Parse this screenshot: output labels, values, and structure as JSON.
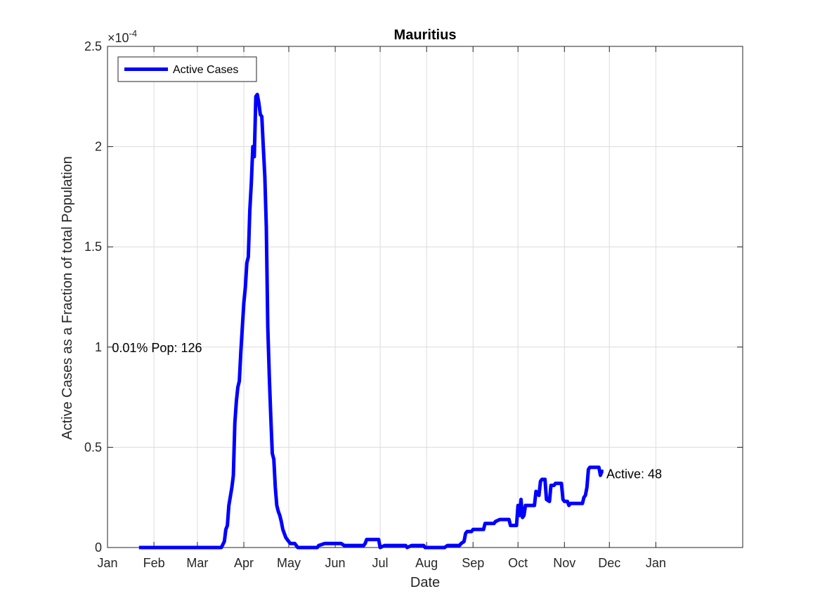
{
  "chart_data": {
    "type": "line",
    "title": "Mauritius",
    "xlabel": "Date",
    "ylabel": "Active Cases as a Fraction of total Population",
    "y_exponent_label": "×10",
    "y_exponent_power": "-4",
    "ylim": [
      0,
      0.00025
    ],
    "y_ticks": [
      0,
      5e-05,
      0.0001,
      0.00015,
      0.0002,
      0.00025
    ],
    "y_tick_labels": [
      "0",
      "0.5",
      "1",
      "1.5",
      "2",
      "2.5"
    ],
    "xlim": [
      "2020-01-01",
      "2021-02-28"
    ],
    "x_ticks": [
      "2020-01-01",
      "2020-02-01",
      "2020-03-01",
      "2020-04-01",
      "2020-05-01",
      "2020-06-01",
      "2020-07-01",
      "2020-08-01",
      "2020-09-01",
      "2020-10-01",
      "2020-11-01",
      "2020-12-01",
      "2021-01-01"
    ],
    "x_tick_labels": [
      "Jan",
      "Feb",
      "Mar",
      "Apr",
      "May",
      "Jun",
      "Jul",
      "Aug",
      "Sep",
      "Oct",
      "Nov",
      "Dec",
      "Jan"
    ],
    "grid": true,
    "legend_placement": "top-left",
    "line_color": "#0000ff",
    "series": [
      {
        "name": "Active Cases",
        "points": [
          [
            "2020-01-22",
            0
          ],
          [
            "2020-03-17",
            0
          ],
          [
            "2020-03-19",
            3e-06
          ],
          [
            "2020-03-20",
            9e-06
          ],
          [
            "2020-03-21",
            1.1e-05
          ],
          [
            "2020-03-22",
            2.1e-05
          ],
          [
            "2020-03-24",
            3e-05
          ],
          [
            "2020-03-25",
            3.6e-05
          ],
          [
            "2020-03-26",
            6.2e-05
          ],
          [
            "2020-03-27",
            7.3e-05
          ],
          [
            "2020-03-28",
            8e-05
          ],
          [
            "2020-03-29",
            8.3e-05
          ],
          [
            "2020-03-30",
            9.8e-05
          ],
          [
            "2020-03-31",
            0.00011
          ],
          [
            "2020-04-01",
            0.000122
          ],
          [
            "2020-04-02",
            0.00013
          ],
          [
            "2020-04-03",
            0.000142
          ],
          [
            "2020-04-04",
            0.000145
          ],
          [
            "2020-04-05",
            0.000168
          ],
          [
            "2020-04-06",
            0.000182
          ],
          [
            "2020-04-07",
            0.0002
          ],
          [
            "2020-04-08",
            0.000195
          ],
          [
            "2020-04-09",
            0.000225
          ],
          [
            "2020-04-10",
            0.000226
          ],
          [
            "2020-04-11",
            0.000222
          ],
          [
            "2020-04-12",
            0.000216
          ],
          [
            "2020-04-13",
            0.000215
          ],
          [
            "2020-04-14",
            0.0002
          ],
          [
            "2020-04-15",
            0.000185
          ],
          [
            "2020-04-16",
            0.00016
          ],
          [
            "2020-04-17",
            0.00011
          ],
          [
            "2020-04-18",
            8.5e-05
          ],
          [
            "2020-04-19",
            6.5e-05
          ],
          [
            "2020-04-20",
            4.7e-05
          ],
          [
            "2020-04-21",
            4.4e-05
          ],
          [
            "2020-04-22",
            3e-05
          ],
          [
            "2020-04-23",
            2.1e-05
          ],
          [
            "2020-04-24",
            1.8e-05
          ],
          [
            "2020-04-25",
            1.6e-05
          ],
          [
            "2020-04-26",
            1.3e-05
          ],
          [
            "2020-04-27",
            9e-06
          ],
          [
            "2020-04-28",
            7e-06
          ],
          [
            "2020-04-29",
            5e-06
          ],
          [
            "2020-04-30",
            4e-06
          ],
          [
            "2020-05-02",
            2e-06
          ],
          [
            "2020-05-05",
            2e-06
          ],
          [
            "2020-05-07",
            0
          ],
          [
            "2020-05-20",
            0
          ],
          [
            "2020-05-21",
            1e-06
          ],
          [
            "2020-05-25",
            2e-06
          ],
          [
            "2020-06-05",
            2e-06
          ],
          [
            "2020-06-07",
            1e-06
          ],
          [
            "2020-06-20",
            1e-06
          ],
          [
            "2020-06-21",
            2e-06
          ],
          [
            "2020-06-22",
            4e-06
          ],
          [
            "2020-06-30",
            4e-06
          ],
          [
            "2020-07-01",
            0
          ],
          [
            "2020-07-04",
            1e-06
          ],
          [
            "2020-07-18",
            1e-06
          ],
          [
            "2020-07-19",
            0
          ],
          [
            "2020-07-22",
            1e-06
          ],
          [
            "2020-07-30",
            1e-06
          ],
          [
            "2020-07-31",
            0
          ],
          [
            "2020-08-13",
            0
          ],
          [
            "2020-08-15",
            1e-06
          ],
          [
            "2020-08-23",
            1e-06
          ],
          [
            "2020-08-24",
            2e-06
          ],
          [
            "2020-08-26",
            3e-06
          ],
          [
            "2020-08-27",
            7e-06
          ],
          [
            "2020-08-28",
            8e-06
          ],
          [
            "2020-08-31",
            8e-06
          ],
          [
            "2020-09-01",
            9e-06
          ],
          [
            "2020-09-08",
            9e-06
          ],
          [
            "2020-09-09",
            1.2e-05
          ],
          [
            "2020-09-15",
            1.2e-05
          ],
          [
            "2020-09-16",
            1.3e-05
          ],
          [
            "2020-09-19",
            1.4e-05
          ],
          [
            "2020-09-25",
            1.4e-05
          ],
          [
            "2020-09-26",
            1.1e-05
          ],
          [
            "2020-09-30",
            1.1e-05
          ],
          [
            "2020-10-01",
            2.1e-05
          ],
          [
            "2020-10-02",
            1.6e-05
          ],
          [
            "2020-10-03",
            2.4e-05
          ],
          [
            "2020-10-04",
            1.5e-05
          ],
          [
            "2020-10-05",
            1.6e-05
          ],
          [
            "2020-10-06",
            2.1e-05
          ],
          [
            "2020-10-12",
            2.1e-05
          ],
          [
            "2020-10-13",
            2.8e-05
          ],
          [
            "2020-10-15",
            2.6e-05
          ],
          [
            "2020-10-16",
            3.3e-05
          ],
          [
            "2020-10-17",
            3.4e-05
          ],
          [
            "2020-10-19",
            3.4e-05
          ],
          [
            "2020-10-20",
            2.4e-05
          ],
          [
            "2020-10-22",
            2.3e-05
          ],
          [
            "2020-10-23",
            3.1e-05
          ],
          [
            "2020-10-25",
            3.1e-05
          ],
          [
            "2020-10-26",
            3.2e-05
          ],
          [
            "2020-10-30",
            3.2e-05
          ],
          [
            "2020-10-31",
            2.4e-05
          ],
          [
            "2020-11-01",
            2.3e-05
          ],
          [
            "2020-11-03",
            2.3e-05
          ],
          [
            "2020-11-04",
            2.1e-05
          ],
          [
            "2020-11-05",
            2.2e-05
          ],
          [
            "2020-11-13",
            2.2e-05
          ],
          [
            "2020-11-14",
            2.5e-05
          ],
          [
            "2020-11-15",
            2.6e-05
          ],
          [
            "2020-11-16",
            3e-05
          ],
          [
            "2020-11-17",
            3.9e-05
          ],
          [
            "2020-11-18",
            4e-05
          ],
          [
            "2020-11-24",
            4e-05
          ],
          [
            "2020-11-25",
            3.6e-05
          ],
          [
            "2020-11-26",
            3.8e-05
          ],
          [
            "2020-11-27",
            3.8e-05
          ]
        ]
      }
    ],
    "annotations": [
      {
        "text": "0.01% Pop: 126",
        "x": "2020-01-04",
        "y": 0.0001
      },
      {
        "text": "Active: 48",
        "x": "2020-11-29",
        "y": 3.7e-05
      }
    ]
  }
}
